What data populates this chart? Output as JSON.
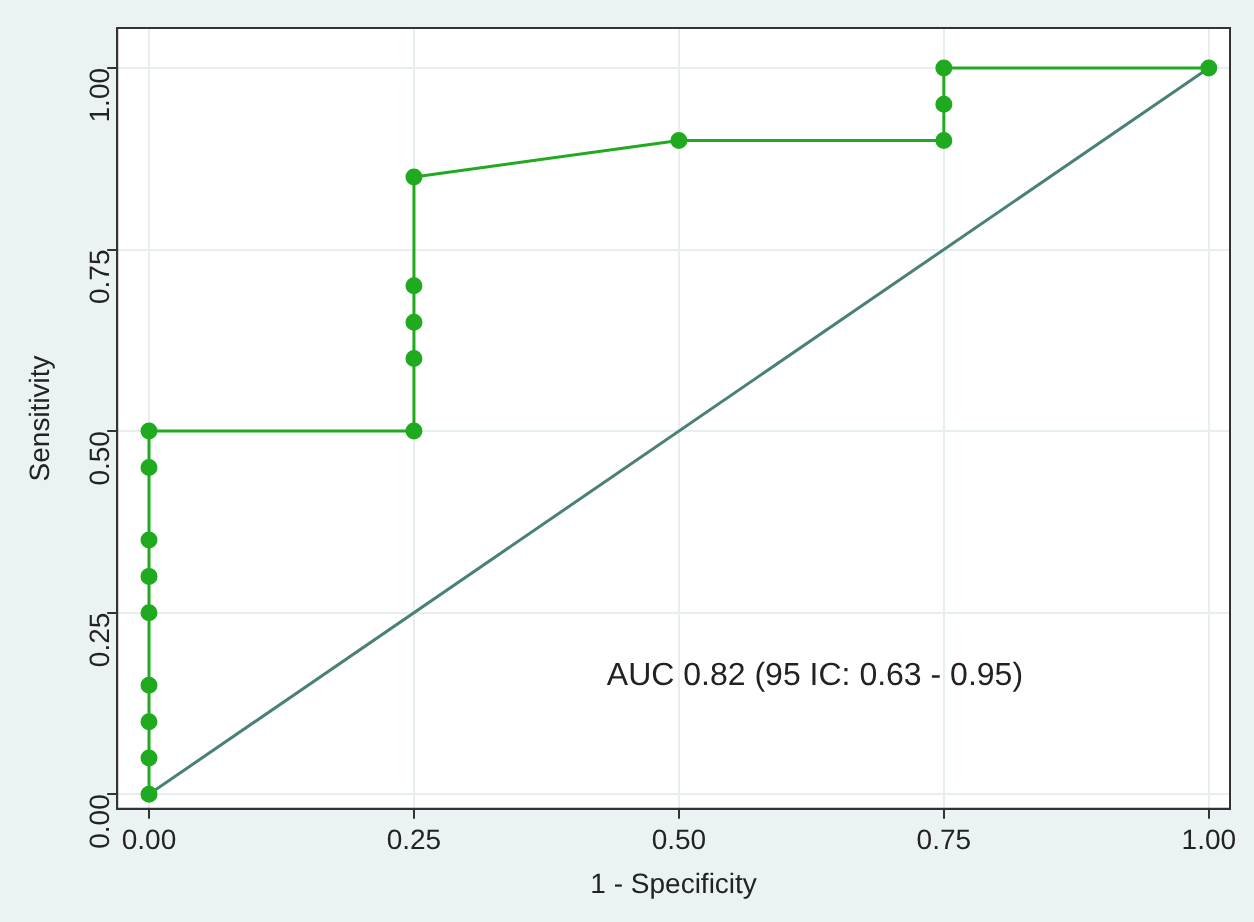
{
  "chart_data": {
    "type": "line",
    "xlabel": "1 - Specificity",
    "ylabel": "Sensitivity",
    "series": [
      {
        "color": "#1faa1f",
        "marker": "circle",
        "x": [
          0,
          0,
          0,
          0,
          0,
          0,
          0,
          0,
          0,
          0.25,
          0.25,
          0.25,
          0.25,
          0.25,
          0.5,
          0.75,
          0.75,
          0.75,
          1
        ],
        "values": [
          0,
          0.05,
          0.1,
          0.15,
          0.25,
          0.3,
          0.35,
          0.45,
          0.5,
          0.5,
          0.6,
          0.65,
          0.7,
          0.85,
          0.9,
          0.9,
          0.95,
          1,
          1
        ]
      },
      {
        "color": "#4a8078",
        "marker": "none",
        "x": [
          0,
          1
        ],
        "values": [
          0,
          1
        ]
      }
    ],
    "xlim": [
      -0.03,
      1.02
    ],
    "ylim": [
      -0.02,
      1.055
    ],
    "xticks": [
      {
        "value": 0,
        "label": "0.00"
      },
      {
        "value": 0.25,
        "label": "0.25"
      },
      {
        "value": 0.5,
        "label": "0.50"
      },
      {
        "value": 0.75,
        "label": "0.75"
      },
      {
        "value": 1,
        "label": "1.00"
      }
    ],
    "yticks": [
      {
        "value": 0,
        "label": "0.00"
      },
      {
        "value": 0.25,
        "label": "0.25"
      },
      {
        "value": 0.5,
        "label": "0.50"
      },
      {
        "value": 0.75,
        "label": "0.75"
      },
      {
        "value": 1,
        "label": "1.00"
      }
    ],
    "grid": true,
    "legend": false,
    "annotations": [
      "AUC 0.82 (95 IC: 0.63 - 0.95)"
    ]
  }
}
